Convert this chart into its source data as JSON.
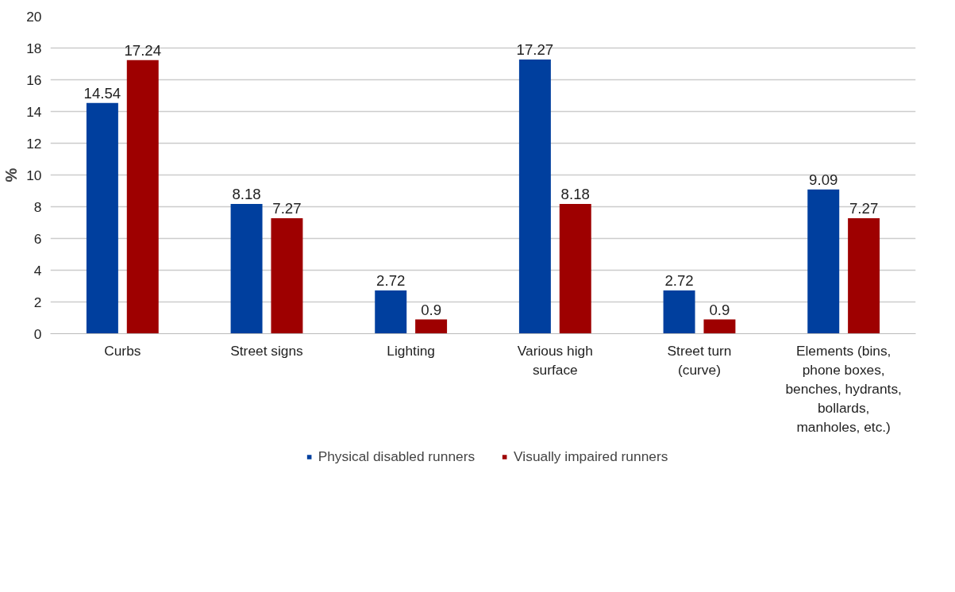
{
  "chart_data": {
    "type": "bar",
    "ylabel": "%",
    "categories": [
      "Curbs",
      "Street signs",
      "Lighting",
      "Various high surface",
      "Street turn (curve)",
      "Elements (bins, phone boxes, benches, hydrants, bollards, manholes, etc.)"
    ],
    "series": [
      {
        "name": "Physical disabled runners",
        "color": "#003f9e",
        "values": [
          14.54,
          8.18,
          2.72,
          17.27,
          2.72,
          9.09
        ]
      },
      {
        "name": "Visually impaired runners",
        "color": "#9e0000",
        "values": [
          17.24,
          7.27,
          0.9,
          8.18,
          0.9,
          7.27
        ]
      }
    ],
    "ylim": [
      0,
      20
    ],
    "yticks": [
      0,
      2,
      4,
      6,
      8,
      10,
      12,
      14,
      16,
      18,
      20
    ],
    "grid": "y",
    "legend": "bottom",
    "data_labels": true
  }
}
